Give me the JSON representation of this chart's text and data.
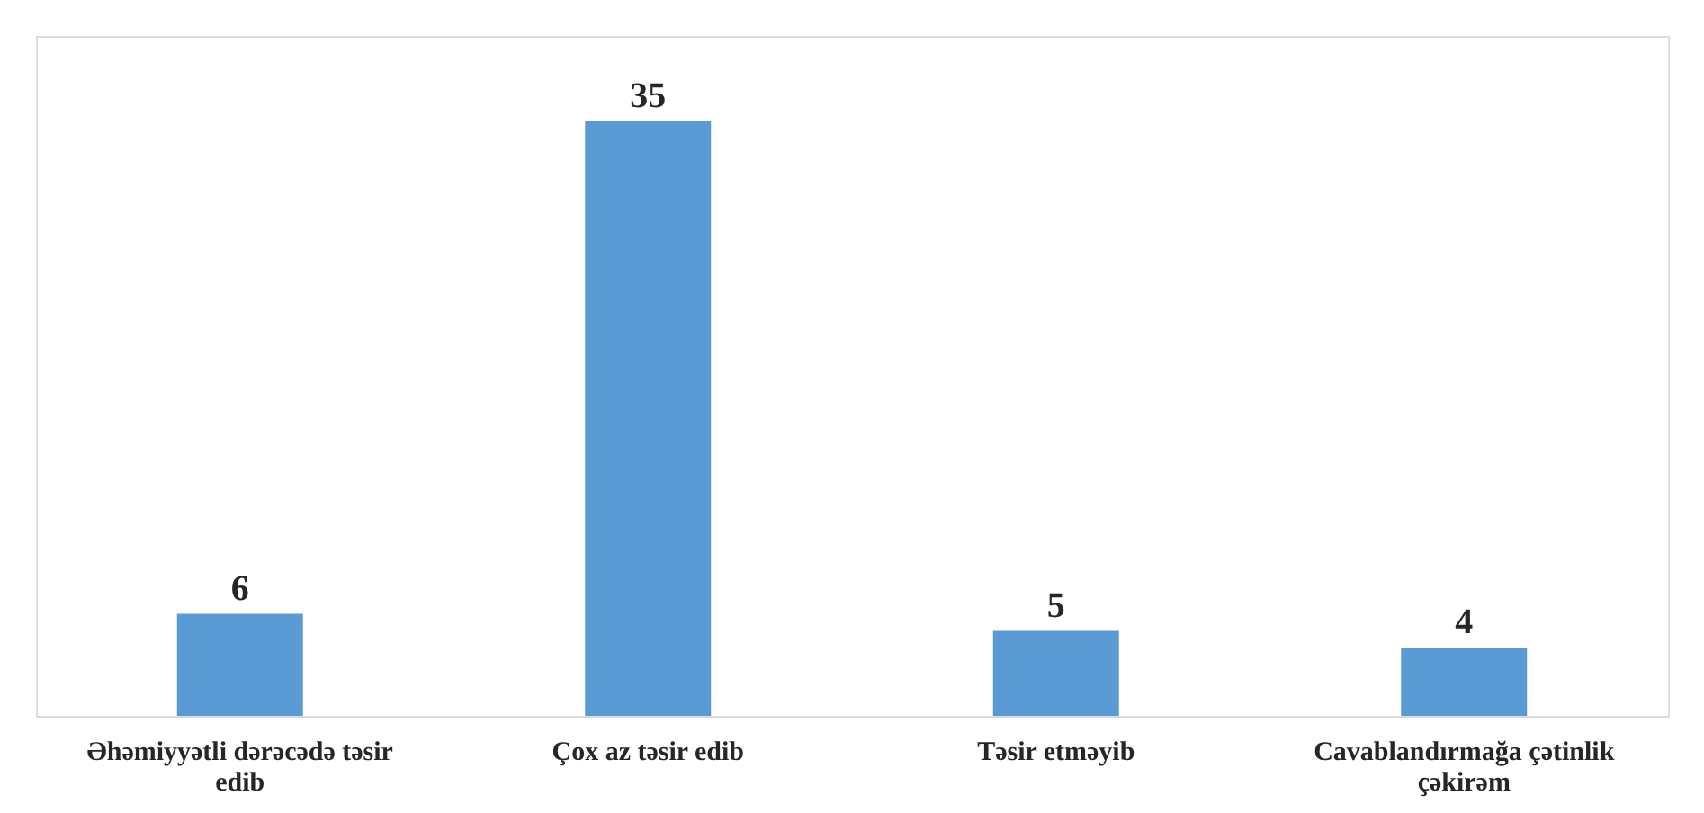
{
  "chart_data": {
    "type": "bar",
    "categories": [
      "Əhəmiyyətli dərəcədə təsir edib",
      "Çox az təsir edib",
      "Təsir etməyib",
      "Cavablandırmağa çətinlik çəkirəm"
    ],
    "values": [
      6,
      35,
      5,
      4
    ],
    "color": "#5b9bd5",
    "ylim": [
      0,
      40
    ],
    "data_labels": true,
    "tick_labels": "x",
    "grid": false
  }
}
